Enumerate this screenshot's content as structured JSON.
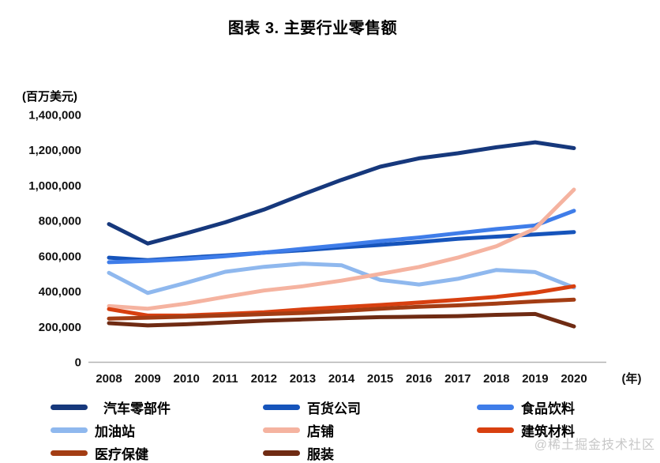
{
  "title": "图表 3. 主要行业零售额",
  "y_axis_unit": "(百万美元)",
  "x_axis_unit": "(年)",
  "watermark": "@稀土掘金技术社区",
  "chart_data": {
    "type": "line",
    "title": "图表 3. 主要行业零售额",
    "xlabel": "年",
    "ylabel": "百万美元",
    "grid": false,
    "legend_position": "bottom",
    "ylim": [
      0,
      1400000
    ],
    "ytick_step": 200000,
    "yticks": [
      "0",
      "200,000",
      "400,000",
      "600,000",
      "800,000",
      "1,000,000",
      "1,200,000",
      "1,400,000"
    ],
    "x": [
      2008,
      2009,
      2010,
      2011,
      2012,
      2013,
      2014,
      2015,
      2016,
      2017,
      2018,
      2019,
      2020
    ],
    "series": [
      {
        "key": "auto-parts",
        "name": "汽车零部件",
        "color": "#16387c",
        "values": [
          780000,
          670000,
          728000,
          790000,
          862000,
          948000,
          1030000,
          1105000,
          1152000,
          1181000,
          1215000,
          1243000,
          1210000
        ]
      },
      {
        "key": "department-stores",
        "name": "百货公司",
        "color": "#1654bb",
        "values": [
          590000,
          576000,
          590000,
          603000,
          618000,
          632000,
          648000,
          662000,
          678000,
          697000,
          709000,
          721000,
          735000
        ]
      },
      {
        "key": "food-beverage",
        "name": "食品饮料",
        "color": "#3f7de9",
        "values": [
          564000,
          571000,
          582000,
          598000,
          618000,
          640000,
          661000,
          684000,
          704000,
          728000,
          752000,
          772000,
          855000
        ]
      },
      {
        "key": "gas-stations",
        "name": "加油站",
        "color": "#8fb8ee",
        "values": [
          504000,
          390000,
          448000,
          510000,
          538000,
          556000,
          547000,
          464000,
          438000,
          470000,
          520000,
          508000,
          421000
        ]
      },
      {
        "key": "stores",
        "name": "店铺",
        "color": "#f5b3a0",
        "values": [
          316000,
          301000,
          330000,
          368000,
          404000,
          428000,
          460000,
          498000,
          537000,
          590000,
          655000,
          754000,
          975000
        ]
      },
      {
        "key": "building-materials",
        "name": "建筑材料",
        "color": "#d84010",
        "values": [
          299000,
          262000,
          263000,
          271000,
          281000,
          297000,
          310000,
          322000,
          336000,
          351000,
          368000,
          392000,
          428000
        ]
      },
      {
        "key": "healthcare",
        "name": "医疗保健",
        "color": "#a33d14",
        "values": [
          245000,
          250000,
          256000,
          263000,
          270000,
          277000,
          288000,
          301000,
          312000,
          320000,
          330000,
          342000,
          352000
        ]
      },
      {
        "key": "clothing",
        "name": "服装",
        "color": "#6f2b13",
        "values": [
          219000,
          206000,
          213000,
          223000,
          233000,
          240000,
          247000,
          253000,
          256000,
          259000,
          266000,
          271000,
          201000
        ]
      }
    ]
  }
}
